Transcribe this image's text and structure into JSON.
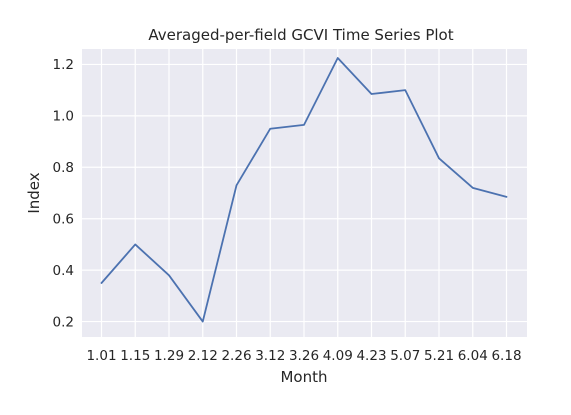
{
  "chart_data": {
    "type": "line",
    "title": "Averaged-per-field GCVI Time Series Plot",
    "xlabel": "Month",
    "ylabel": "Index",
    "categories": [
      "1.01",
      "1.15",
      "1.29",
      "2.12",
      "2.26",
      "3.12",
      "3.26",
      "4.09",
      "4.23",
      "5.07",
      "5.21",
      "6.04",
      "6.18"
    ],
    "series": [
      {
        "values": [
          0.35,
          0.5,
          0.38,
          0.2,
          0.73,
          0.95,
          0.965,
          1.225,
          1.085,
          1.1,
          0.835,
          0.72,
          0.685
        ]
      }
    ],
    "yticks": [
      "0.2",
      "0.4",
      "0.6",
      "0.8",
      "1.0",
      "1.2"
    ],
    "ylim": [
      0.14,
      1.26
    ],
    "grid": true,
    "colors": {
      "plot_background": "#eaeaf2",
      "grid": "#ffffff",
      "line": "#4c72b0",
      "text": "#262626"
    }
  }
}
